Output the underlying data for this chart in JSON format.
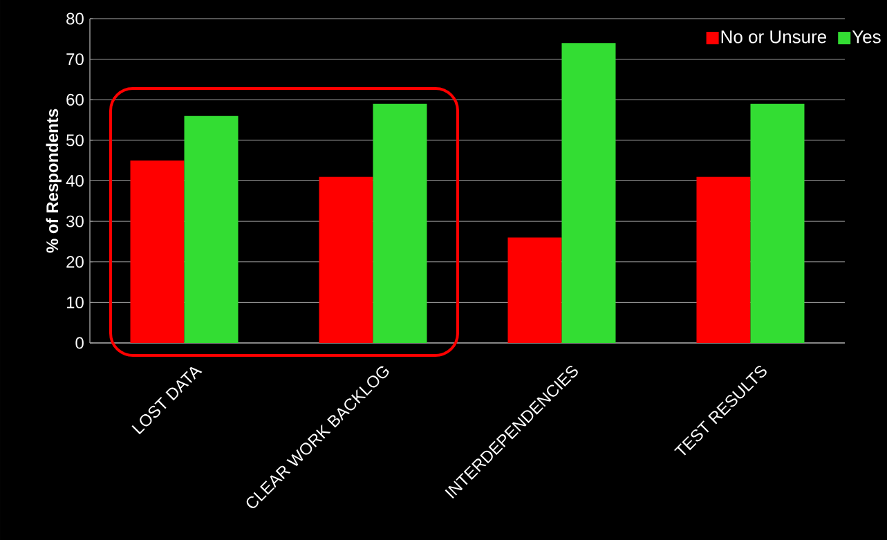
{
  "chart_data": {
    "type": "bar",
    "ylabel": "% of Respondents",
    "categories": [
      "LOST DATA",
      "CLEAR WORK BACKLOG",
      "INTERDEPENDENCIES",
      "TEST RESULTS"
    ],
    "series": [
      {
        "name": "No or Unsure",
        "color": "#ff0000",
        "values": [
          45,
          41,
          26,
          41
        ]
      },
      {
        "name": "Yes",
        "color": "#33dd33",
        "values": [
          56,
          59,
          74,
          59
        ]
      }
    ],
    "ylim": [
      0,
      80
    ],
    "yticks": [
      0,
      10,
      20,
      30,
      40,
      50,
      60,
      70,
      80
    ],
    "grid": "y",
    "legend": "top right"
  }
}
